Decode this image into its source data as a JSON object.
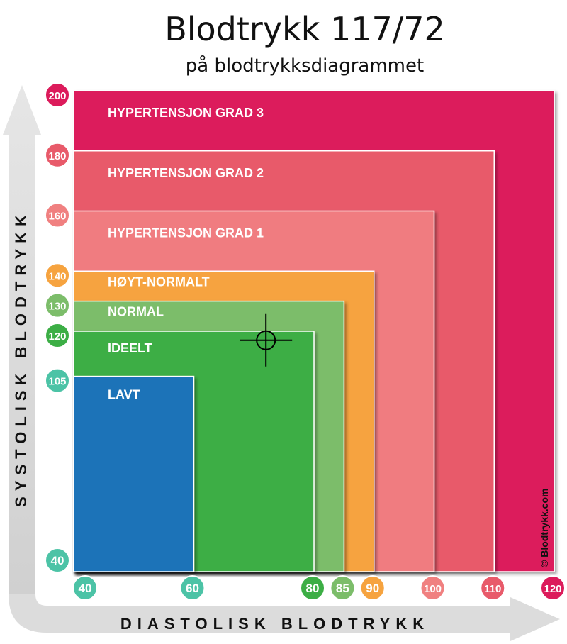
{
  "title": "Blodtrykk 117/72",
  "subtitle": "på blodtrykksdiagrammet",
  "copyright": "© Blodtrykk.com",
  "chart_data": {
    "type": "heatmap",
    "xlabel": "DIASTOLISK BLODTRYKK",
    "ylabel": "SYSTOLISK BLODTRYKK",
    "xlim": [
      40,
      120
    ],
    "ylim": [
      40,
      200
    ],
    "x_ticks": [
      {
        "value": 40,
        "label": "40",
        "color": "#4cc3a6"
      },
      {
        "value": 60,
        "label": "60",
        "color": "#4cc3a6"
      },
      {
        "value": 80,
        "label": "80",
        "color": "#3cae45"
      },
      {
        "value": 85,
        "label": "85",
        "color": "#7cbd6a"
      },
      {
        "value": 90,
        "label": "90",
        "color": "#f6a33f"
      },
      {
        "value": 100,
        "label": "100",
        "color": "#f08080"
      },
      {
        "value": 110,
        "label": "110",
        "color": "#e85a6a"
      },
      {
        "value": 120,
        "label": "120",
        "color": "#dc1b5b"
      }
    ],
    "y_ticks": [
      {
        "value": 200,
        "label": "200",
        "color": "#dc1b5b"
      },
      {
        "value": 180,
        "label": "180",
        "color": "#e85a6a"
      },
      {
        "value": 160,
        "label": "160",
        "color": "#f08080"
      },
      {
        "value": 140,
        "label": "140",
        "color": "#f6a33f"
      },
      {
        "value": 130,
        "label": "130",
        "color": "#7cbd6a"
      },
      {
        "value": 120,
        "label": "120",
        "color": "#3cae45"
      },
      {
        "value": 105,
        "label": "105",
        "color": "#4cc3a6"
      },
      {
        "value": 40,
        "label": "40",
        "color": "#4cc3a6"
      }
    ],
    "zones": [
      {
        "label": "HYPERTENSJON GRAD 3",
        "max_diastolic": 120,
        "max_systolic": 200,
        "color": "#dc1b5b"
      },
      {
        "label": "HYPERTENSJON GRAD 2",
        "max_diastolic": 110,
        "max_systolic": 180,
        "color": "#e85a6a"
      },
      {
        "label": "HYPERTENSJON GRAD 1",
        "max_diastolic": 100,
        "max_systolic": 160,
        "color": "#f07c80"
      },
      {
        "label": "HØYT-NORMALT",
        "max_diastolic": 90,
        "max_systolic": 140,
        "color": "#f6a33f"
      },
      {
        "label": "NORMAL",
        "max_diastolic": 85,
        "max_systolic": 130,
        "color": "#7cbd6a"
      },
      {
        "label": "IDEELT",
        "max_diastolic": 80,
        "max_systolic": 120,
        "color": "#3cae45"
      },
      {
        "label": "LAVT",
        "max_diastolic": 60,
        "max_systolic": 105,
        "color": "#1c73b8"
      }
    ],
    "marker": {
      "diastolic": 72,
      "systolic": 117
    }
  }
}
